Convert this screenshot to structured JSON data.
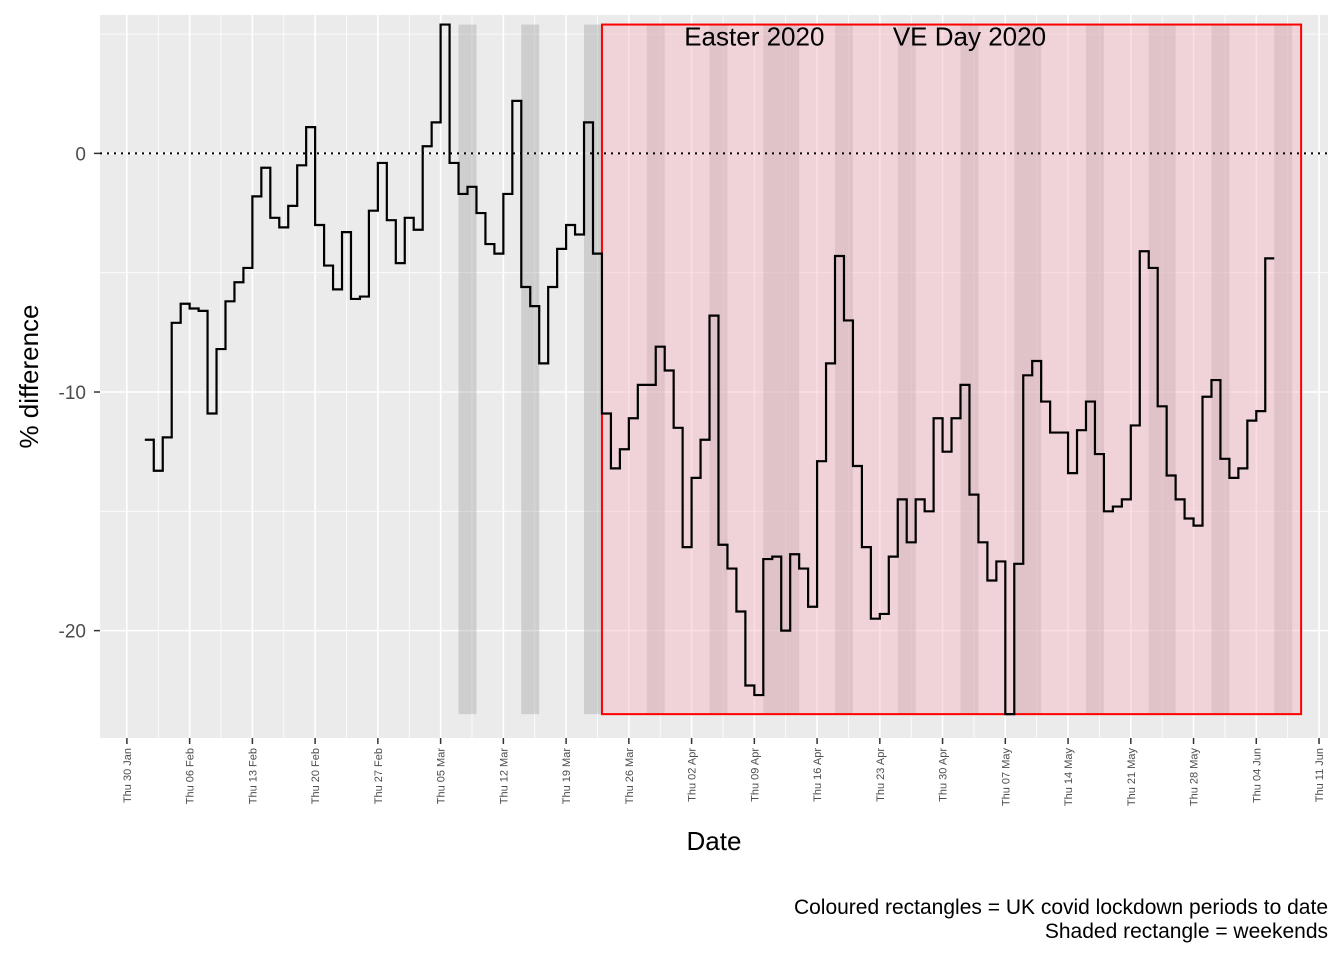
{
  "chart_data": {
    "type": "line",
    "title": "",
    "xlabel": "Date",
    "ylabel": "% difference",
    "y_ticks": [
      0,
      -10,
      -20
    ],
    "ylim": [
      -24.5,
      5.8
    ],
    "xlim": [
      "2020-01-27",
      "2020-06-12"
    ],
    "x_ticks": [
      {
        "date": "2020-01-30",
        "label": "Thu 30 Jan"
      },
      {
        "date": "2020-02-06",
        "label": "Thu 06 Feb"
      },
      {
        "date": "2020-02-13",
        "label": "Thu 13 Feb"
      },
      {
        "date": "2020-02-20",
        "label": "Thu 20 Feb"
      },
      {
        "date": "2020-02-27",
        "label": "Thu 27 Feb"
      },
      {
        "date": "2020-03-05",
        "label": "Thu 05 Mar"
      },
      {
        "date": "2020-03-12",
        "label": "Thu 12 Mar"
      },
      {
        "date": "2020-03-19",
        "label": "Thu 19 Mar"
      },
      {
        "date": "2020-03-26",
        "label": "Thu 26 Mar"
      },
      {
        "date": "2020-04-02",
        "label": "Thu 02 Apr"
      },
      {
        "date": "2020-04-09",
        "label": "Thu 09 Apr"
      },
      {
        "date": "2020-04-16",
        "label": "Thu 16 Apr"
      },
      {
        "date": "2020-04-23",
        "label": "Thu 23 Apr"
      },
      {
        "date": "2020-04-30",
        "label": "Thu 30 Apr"
      },
      {
        "date": "2020-05-07",
        "label": "Thu 07 May"
      },
      {
        "date": "2020-05-14",
        "label": "Thu 14 May"
      },
      {
        "date": "2020-05-21",
        "label": "Thu 21 May"
      },
      {
        "date": "2020-05-28",
        "label": "Thu 28 May"
      },
      {
        "date": "2020-06-04",
        "label": "Thu 04 Jun"
      },
      {
        "date": "2020-06-11",
        "label": "Thu 11 Jun"
      }
    ],
    "series": [
      {
        "start_date": "2020-02-01",
        "step": "daily",
        "values": [
          -12.0,
          -13.3,
          -11.9,
          -7.1,
          -6.3,
          -6.5,
          -6.6,
          -10.9,
          -8.2,
          -6.2,
          -5.4,
          -4.8,
          -1.8,
          -0.6,
          -2.7,
          -3.1,
          -2.2,
          -0.5,
          1.1,
          -3.0,
          -4.7,
          -5.7,
          -3.3,
          -6.1,
          -6.0,
          -2.4,
          -0.4,
          -2.8,
          -4.6,
          -2.7,
          -3.2,
          0.3,
          1.3,
          5.4,
          -0.4,
          -1.7,
          -1.4,
          -2.5,
          -3.8,
          -4.2,
          -1.7,
          2.2,
          -5.6,
          -6.4,
          -8.8,
          -5.6,
          -4.0,
          -3.0,
          -3.4,
          1.3,
          -4.2,
          -10.9,
          -13.2,
          -12.4,
          -11.1,
          -9.7,
          -9.7,
          -8.1,
          -9.1,
          -11.5,
          -16.5,
          -13.6,
          -12.0,
          -6.8,
          -16.4,
          -17.4,
          -19.2,
          -22.3,
          -22.7,
          -17.0,
          -16.9,
          -20.0,
          -16.8,
          -17.4,
          -19.0,
          -12.9,
          -8.8,
          -4.3,
          -7.0,
          -13.1,
          -16.5,
          -19.5,
          -19.3,
          -16.9,
          -14.5,
          -16.3,
          -14.5,
          -15.0,
          -11.1,
          -12.5,
          -11.1,
          -9.7,
          -14.3,
          -16.3,
          -17.9,
          -17.1,
          -23.5,
          -17.2,
          -9.3,
          -8.7,
          -10.4,
          -11.7,
          -11.7,
          -13.4,
          -11.6,
          -10.4,
          -12.6,
          -15.0,
          -14.8,
          -14.5,
          -11.4,
          -4.1,
          -4.8,
          -10.6,
          -13.5,
          -14.5,
          -15.3,
          -15.6,
          -10.2,
          -9.5,
          -12.8,
          -13.6,
          -13.2,
          -11.2,
          -10.8,
          -4.4
        ]
      }
    ],
    "weekends": [
      {
        "start": "2020-03-07",
        "end": "2020-03-08"
      },
      {
        "start": "2020-03-14",
        "end": "2020-03-15"
      },
      {
        "start": "2020-03-21",
        "end": "2020-03-22"
      },
      {
        "start": "2020-03-28",
        "end": "2020-03-29"
      },
      {
        "start": "2020-04-04",
        "end": "2020-04-05"
      },
      {
        "start": "2020-04-10",
        "end": "2020-04-13"
      },
      {
        "start": "2020-04-18",
        "end": "2020-04-19"
      },
      {
        "start": "2020-04-25",
        "end": "2020-04-26"
      },
      {
        "start": "2020-05-02",
        "end": "2020-05-03"
      },
      {
        "start": "2020-05-08",
        "end": "2020-05-10"
      },
      {
        "start": "2020-05-16",
        "end": "2020-05-17"
      },
      {
        "start": "2020-05-23",
        "end": "2020-05-25"
      },
      {
        "start": "2020-05-30",
        "end": "2020-05-31"
      },
      {
        "start": "2020-06-06",
        "end": "2020-06-07"
      }
    ],
    "lockdown": {
      "start": "2020-03-23",
      "end": "2020-06-08"
    },
    "reference_line": 0,
    "annotations": [
      {
        "text": "Easter 2020",
        "date": "2020-04-09",
        "y": 4.9
      },
      {
        "text": "VE Day 2020",
        "date": "2020-05-03",
        "y": 4.9
      }
    ],
    "colors": {
      "panel": "#ebebeb",
      "grid": "#ffffff",
      "line": "#000000",
      "weekend": "#999999",
      "lockdown_fill": "#f4b6c1",
      "lockdown_border": "#ff0000"
    },
    "grid": true
  },
  "captions": {
    "line1": "Coloured rectangles = UK covid lockdown periods to date",
    "line2": "Shaded rectangle = weekends"
  }
}
